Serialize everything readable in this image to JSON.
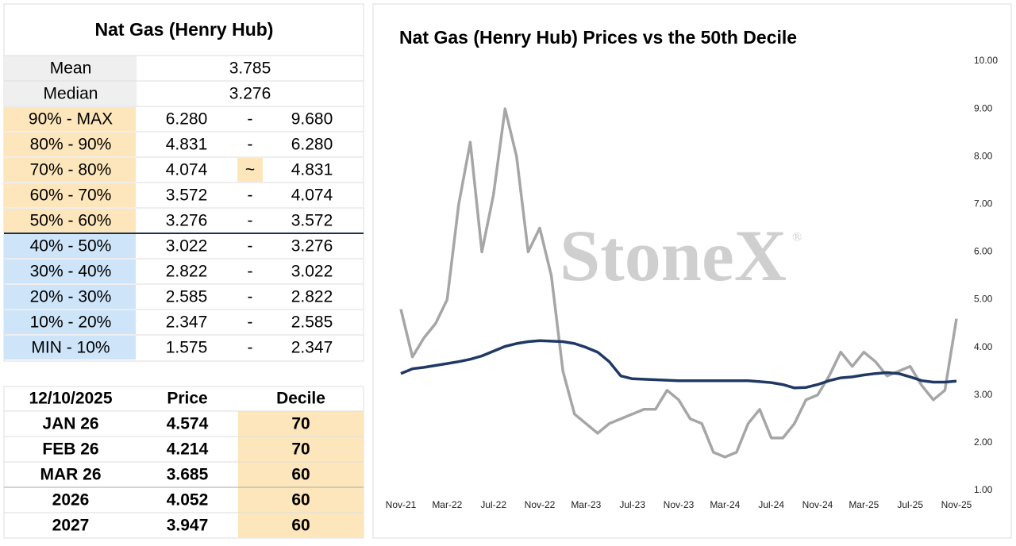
{
  "stats_table": {
    "title": "Nat Gas (Henry Hub)",
    "rows": [
      [
        "Mean",
        "3.785"
      ],
      [
        "Median",
        "3.276"
      ]
    ],
    "deciles": [
      [
        "90% - MAX",
        "6.280",
        "-",
        "9.680"
      ],
      [
        "80% - 90%",
        "4.831",
        "-",
        "6.280"
      ],
      [
        "70% - 80%",
        "4.074",
        "~",
        "4.831"
      ],
      [
        "60% - 70%",
        "3.572",
        "-",
        "4.074"
      ],
      [
        "50% - 60%",
        "3.276",
        "-",
        "3.572"
      ],
      [
        "40% - 50%",
        "3.022",
        "-",
        "3.276"
      ],
      [
        "30% - 40%",
        "2.822",
        "-",
        "3.022"
      ],
      [
        "20% - 30%",
        "2.585",
        "-",
        "2.822"
      ],
      [
        "10% - 20%",
        "2.347",
        "-",
        "2.585"
      ],
      [
        "MIN - 10%",
        "1.575",
        "-",
        "2.347"
      ]
    ]
  },
  "price_table": {
    "header": [
      "12/10/2025",
      "Price",
      "Decile"
    ],
    "rows": [
      [
        "JAN 26",
        "4.574",
        "70"
      ],
      [
        "FEB 26",
        "4.214",
        "70"
      ],
      [
        "MAR 26",
        "3.685",
        "60"
      ],
      [
        "2026",
        "4.052",
        "60"
      ],
      [
        "2027",
        "3.947",
        "60"
      ]
    ]
  },
  "chart_data": {
    "type": "line",
    "title": "Nat Gas (Henry Hub) Prices vs the 50th Decile",
    "watermark": "StoneX",
    "watermark_mark": "®",
    "categories": [
      "Nov-21",
      null,
      null,
      null,
      "Mar-22",
      null,
      null,
      null,
      "Jul-22",
      null,
      null,
      null,
      "Nov-22",
      null,
      null,
      null,
      "Mar-23",
      null,
      null,
      null,
      "Jul-23",
      null,
      null,
      null,
      "Nov-23",
      null,
      null,
      null,
      "Mar-24",
      null,
      null,
      null,
      "Jul-24",
      null,
      null,
      null,
      "Nov-24",
      null,
      null,
      null,
      "Mar-25",
      null,
      null,
      null,
      "Jul-25",
      null,
      null,
      null,
      "Nov-25"
    ],
    "series": [
      {
        "color": "#a6a6a6",
        "values": [
          4.8,
          3.8,
          4.2,
          4.5,
          5.0,
          7.0,
          8.3,
          6.0,
          7.2,
          9.0,
          8.0,
          6.0,
          6.5,
          5.5,
          3.5,
          2.6,
          2.4,
          2.2,
          2.4,
          2.5,
          2.6,
          2.7,
          2.7,
          3.1,
          2.9,
          2.5,
          2.4,
          1.8,
          1.7,
          1.8,
          2.4,
          2.7,
          2.1,
          2.1,
          2.4,
          2.9,
          3.0,
          3.4,
          3.9,
          3.6,
          3.9,
          3.7,
          3.4,
          3.5,
          3.6,
          3.2,
          2.9,
          3.1,
          4.6
        ]
      },
      {
        "color": "#1f3864",
        "values": [
          3.45,
          3.55,
          3.58,
          3.62,
          3.66,
          3.7,
          3.75,
          3.82,
          3.92,
          4.02,
          4.08,
          4.12,
          4.14,
          4.13,
          4.12,
          4.08,
          4.0,
          3.9,
          3.7,
          3.4,
          3.34,
          3.33,
          3.32,
          3.31,
          3.3,
          3.3,
          3.3,
          3.3,
          3.3,
          3.3,
          3.3,
          3.28,
          3.26,
          3.22,
          3.15,
          3.16,
          3.22,
          3.3,
          3.36,
          3.38,
          3.42,
          3.45,
          3.47,
          3.45,
          3.38,
          3.3,
          3.27,
          3.27,
          3.29
        ]
      }
    ],
    "ylim": [
      1,
      10
    ],
    "yticks": [
      {
        "value": 1,
        "label": "1.00"
      },
      {
        "value": 2,
        "label": "2.00"
      },
      {
        "value": 3,
        "label": "3.00"
      },
      {
        "value": 4,
        "label": "4.00"
      },
      {
        "value": 5,
        "label": "5.00"
      },
      {
        "value": 6,
        "label": "6.00"
      },
      {
        "value": 7,
        "label": "7.00"
      },
      {
        "value": 8,
        "label": "8.00"
      },
      {
        "value": 9,
        "label": "9.00"
      },
      {
        "value": 10,
        "label": "10.00"
      }
    ]
  }
}
